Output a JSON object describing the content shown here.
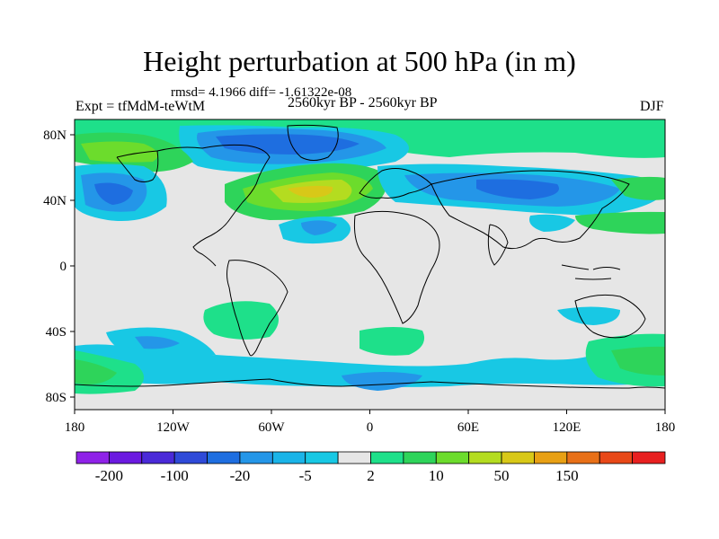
{
  "title": "Height perturbation at 500 hPa (in m)",
  "stats": "rmsd= 4.1966 diff= -1.61322e-08",
  "experiment": "Expt = tfMdM-teWtM",
  "period": "2560kyr BP - 2560kyr BP",
  "season": "DJF",
  "latitude_labels": [
    "80N",
    "40N",
    "0",
    "40S",
    "80S"
  ],
  "longitude_labels": [
    "180",
    "120W",
    "60W",
    "0",
    "60E",
    "120E",
    "180"
  ],
  "colorbar": {
    "labels": [
      "-200",
      "-100",
      "-20",
      "-5",
      "2",
      "10",
      "50",
      "150"
    ],
    "colors": [
      "#8f22e8",
      "#6b1ae0",
      "#4a2ad8",
      "#2f4ad8",
      "#1e6ee0",
      "#2496e8",
      "#1ab4e8",
      "#18c8e4",
      "#e6e6e6",
      "#1ee08a",
      "#2ed45a",
      "#6cdc2c",
      "#b4dc20",
      "#d8c818",
      "#e8a014",
      "#e87018",
      "#e84818",
      "#e82020"
    ]
  },
  "map": {
    "ocean_fill": "#e6e6e6",
    "coastline_color": "#000000"
  }
}
